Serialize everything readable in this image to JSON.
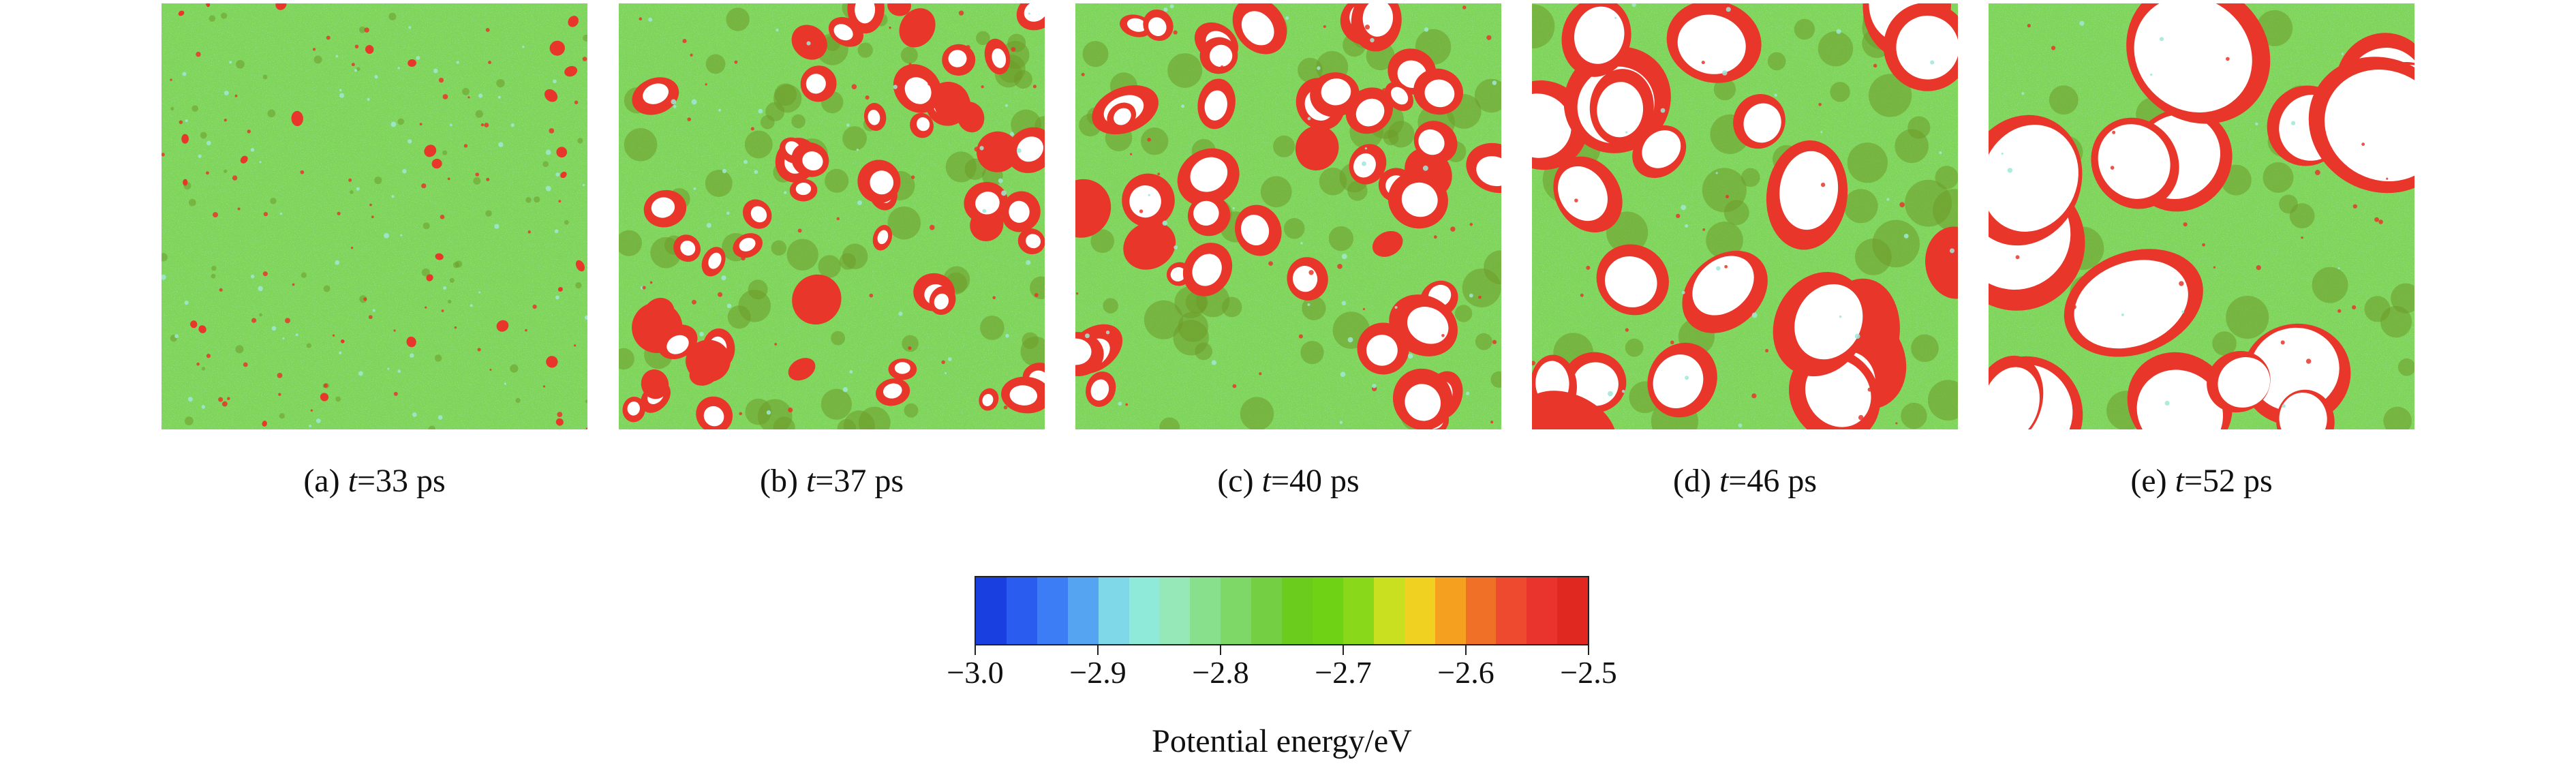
{
  "panels": [
    {
      "id": "a",
      "label": "(a)",
      "var": "t",
      "value": "=33 ps",
      "stage": 0
    },
    {
      "id": "b",
      "label": "(b)",
      "var": "t",
      "value": "=37 ps",
      "stage": 1
    },
    {
      "id": "c",
      "label": "(c)",
      "var": "t",
      "value": "=40 ps",
      "stage": 2
    },
    {
      "id": "d",
      "label": "(d)",
      "var": "t",
      "value": "=46 ps",
      "stage": 3
    },
    {
      "id": "e",
      "label": "(e)",
      "var": "t",
      "value": "=52 ps",
      "stage": 4
    }
  ],
  "colorbar": {
    "title": "Potential energy/eV",
    "min": -3.0,
    "max": -2.5,
    "ticks": [
      {
        "value": -3.0,
        "label": "−3.0"
      },
      {
        "value": -2.9,
        "label": "−2.9"
      },
      {
        "value": -2.8,
        "label": "−2.8"
      },
      {
        "value": -2.7,
        "label": "−2.7"
      },
      {
        "value": -2.6,
        "label": "−2.6"
      },
      {
        "value": -2.5,
        "label": "−2.5"
      }
    ],
    "colors": [
      "#1a3fe0",
      "#2b5cf0",
      "#3c7cf4",
      "#55a4f2",
      "#7fd8e8",
      "#8feada",
      "#97e8b8",
      "#88e08c",
      "#7ed868",
      "#74d042",
      "#6ccc1e",
      "#70d214",
      "#8ad81a",
      "#c8e020",
      "#f0d020",
      "#f6a020",
      "#f07028",
      "#ee4a30",
      "#e8342c",
      "#e02820"
    ],
    "panel_colors": {
      "green": "#7fd45a",
      "green_alt": "#6ccb3d",
      "cyan": "#9ee8d8",
      "olive": "#6d9a2a",
      "red": "#e8362a",
      "white": "#ffffff"
    }
  }
}
